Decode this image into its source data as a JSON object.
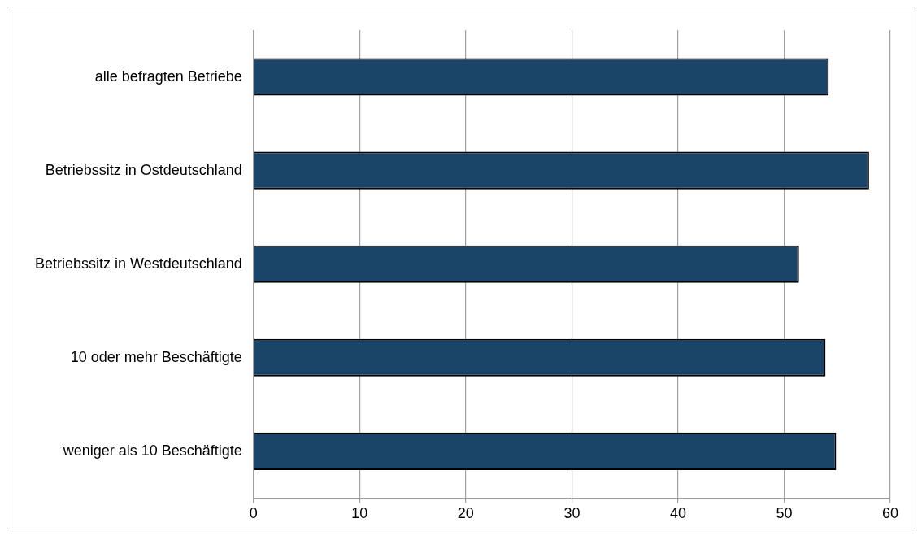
{
  "chart_data": {
    "type": "bar",
    "orientation": "horizontal",
    "categories": [
      "alle befragten Betriebe",
      "Betriebssitz in Ostdeutschland",
      "Betriebssitz in Westdeutschland",
      "10 oder mehr Beschäftigte",
      "weniger als 10 Beschäftigte"
    ],
    "values": [
      54.2,
      58.0,
      51.4,
      53.9,
      54.9
    ],
    "color": "#1b4469",
    "xlim": [
      0,
      60
    ],
    "xticks": [
      0,
      10,
      20,
      30,
      40,
      50,
      60
    ],
    "grid": "x",
    "legend": false
  }
}
